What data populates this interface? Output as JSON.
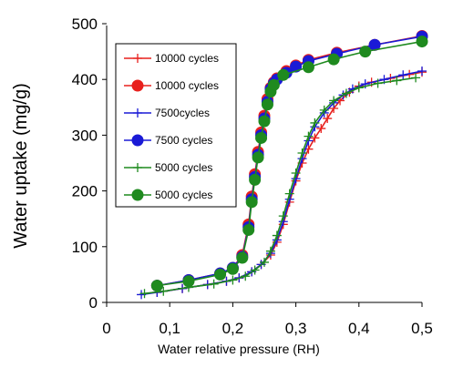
{
  "chart_data": {
    "type": "line",
    "xlabel": "Water relative pressure (RH)",
    "ylabel": "Water uptake (mg/g)",
    "xlim": [
      0,
      0.5
    ],
    "ylim": [
      0,
      500
    ],
    "xticks": [
      0,
      0.1,
      0.2,
      0.3,
      0.4,
      0.5
    ],
    "xtick_labels": [
      "0",
      "0,1",
      "0,2",
      "0,3",
      "0,4",
      "0,5"
    ],
    "yticks": [
      0,
      100,
      200,
      300,
      400,
      500
    ],
    "ytick_labels": [
      "0",
      "100",
      "200",
      "300",
      "400",
      "500"
    ],
    "grid": false,
    "legend_position": "top-left",
    "series": [
      {
        "name": "10000 cycles",
        "color": "#e8201d",
        "marker": "plus",
        "x": [
          0.08,
          0.12,
          0.16,
          0.19,
          0.21,
          0.23,
          0.245,
          0.26,
          0.27,
          0.28,
          0.29,
          0.3,
          0.31,
          0.32,
          0.33,
          0.34,
          0.35,
          0.36,
          0.37,
          0.385,
          0.4,
          0.42,
          0.45,
          0.48,
          0.5
        ],
        "y": [
          18,
          25,
          32,
          38,
          44,
          55,
          68,
          85,
          108,
          140,
          180,
          218,
          250,
          275,
          295,
          312,
          330,
          348,
          362,
          377,
          388,
          395,
          402,
          409,
          413
        ]
      },
      {
        "name": "10000 cycles",
        "color": "#e8201d",
        "marker": "circle",
        "x": [
          0.08,
          0.13,
          0.18,
          0.2,
          0.215,
          0.225,
          0.23,
          0.235,
          0.24,
          0.245,
          0.25,
          0.255,
          0.26,
          0.265,
          0.27,
          0.285,
          0.3,
          0.32,
          0.365,
          0.425,
          0.5
        ],
        "y": [
          30,
          40,
          52,
          62,
          85,
          140,
          190,
          230,
          270,
          305,
          335,
          365,
          385,
          395,
          402,
          415,
          425,
          435,
          448,
          462,
          478
        ]
      },
      {
        "name": "7500cycles",
        "color": "#1a1ad6",
        "marker": "plus",
        "x": [
          0.055,
          0.08,
          0.12,
          0.16,
          0.19,
          0.21,
          0.23,
          0.245,
          0.26,
          0.27,
          0.28,
          0.29,
          0.3,
          0.31,
          0.32,
          0.33,
          0.345,
          0.36,
          0.375,
          0.39,
          0.41,
          0.44,
          0.47,
          0.5
        ],
        "y": [
          14,
          18,
          25,
          32,
          38,
          44,
          55,
          68,
          88,
          112,
          145,
          185,
          222,
          258,
          290,
          315,
          340,
          358,
          372,
          383,
          392,
          400,
          408,
          415
        ]
      },
      {
        "name": "7500 cycles",
        "color": "#1a1ad6",
        "marker": "circle",
        "x": [
          0.08,
          0.13,
          0.18,
          0.2,
          0.215,
          0.225,
          0.23,
          0.235,
          0.24,
          0.245,
          0.25,
          0.255,
          0.26,
          0.265,
          0.27,
          0.285,
          0.3,
          0.32,
          0.365,
          0.425,
          0.5
        ],
        "y": [
          30,
          40,
          52,
          62,
          82,
          135,
          185,
          225,
          265,
          300,
          330,
          360,
          383,
          393,
          400,
          412,
          423,
          433,
          446,
          462,
          477
        ]
      },
      {
        "name": "5000 cycles",
        "color": "#1f8a1f",
        "marker": "plus",
        "x": [
          0.06,
          0.09,
          0.13,
          0.17,
          0.2,
          0.22,
          0.235,
          0.25,
          0.26,
          0.27,
          0.28,
          0.29,
          0.3,
          0.31,
          0.32,
          0.33,
          0.345,
          0.36,
          0.38,
          0.4,
          0.43,
          0.46,
          0.49
        ],
        "y": [
          16,
          20,
          27,
          33,
          40,
          47,
          58,
          72,
          92,
          120,
          155,
          195,
          232,
          268,
          298,
          322,
          345,
          362,
          375,
          385,
          393,
          398,
          403
        ]
      },
      {
        "name": "5000 cycles",
        "color": "#1f8a1f",
        "marker": "circle",
        "x": [
          0.08,
          0.13,
          0.18,
          0.2,
          0.215,
          0.225,
          0.23,
          0.235,
          0.24,
          0.245,
          0.25,
          0.255,
          0.26,
          0.265,
          0.28,
          0.32,
          0.36,
          0.41,
          0.5
        ],
        "y": [
          30,
          38,
          50,
          60,
          80,
          130,
          180,
          220,
          260,
          295,
          325,
          355,
          378,
          390,
          408,
          422,
          436,
          450,
          468
        ]
      }
    ]
  }
}
